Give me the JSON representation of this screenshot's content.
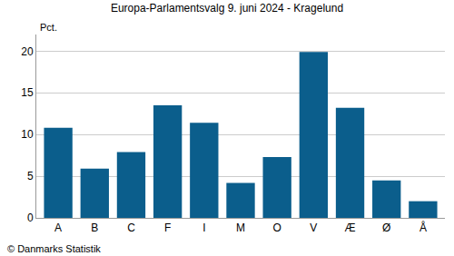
{
  "chart_data": {
    "type": "bar",
    "title": "Europa-Parlamentsvalg 9. juni 2024 - Kragelund",
    "ylabel": "Pct.",
    "source": "© Danmarks Statistik",
    "categories": [
      "A",
      "B",
      "C",
      "F",
      "I",
      "M",
      "O",
      "V",
      "Æ",
      "Ø",
      "Å"
    ],
    "values": [
      10.8,
      5.9,
      7.9,
      13.5,
      11.4,
      4.2,
      7.3,
      19.9,
      13.2,
      4.5,
      2.0
    ],
    "color": "#0b5e8c",
    "ylim": [
      0,
      22
    ],
    "yticks": [
      0,
      5,
      10,
      15,
      20
    ],
    "grid": true
  }
}
